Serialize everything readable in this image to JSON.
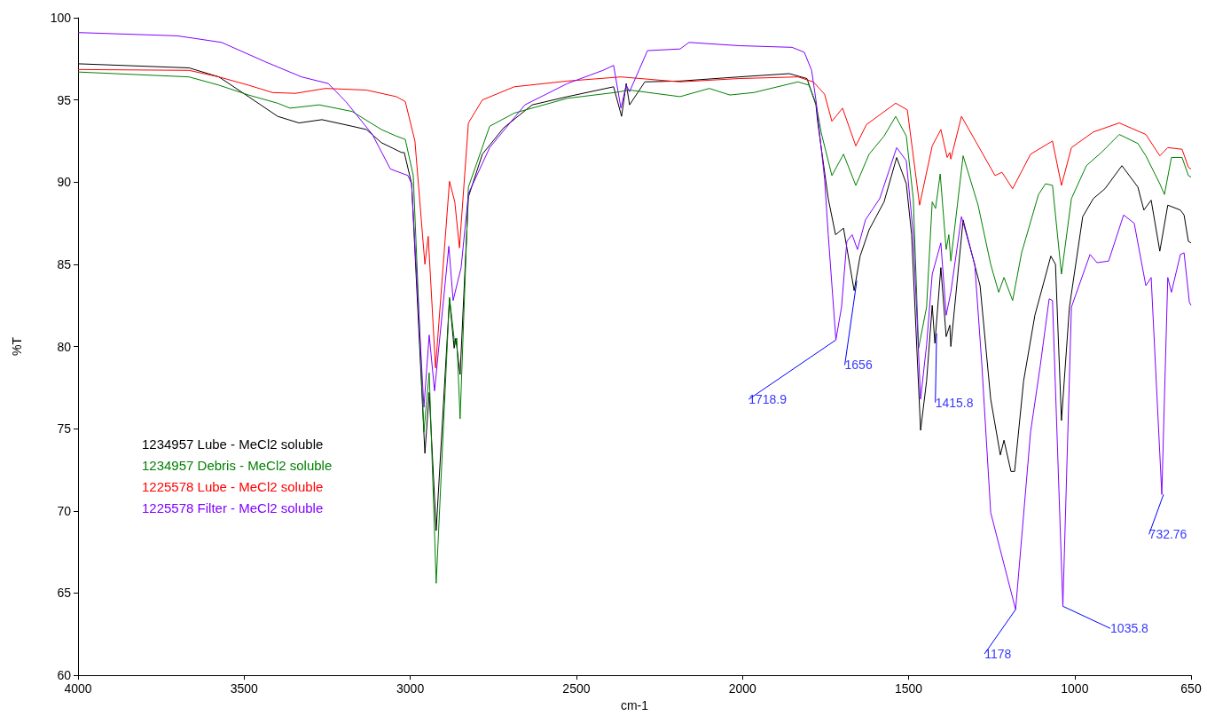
{
  "chart_data": {
    "type": "line",
    "xlabel": "cm-1",
    "ylabel": "%T",
    "xlim": [
      4000,
      650
    ],
    "ylim": [
      60,
      100
    ],
    "xticks": [
      4000,
      3500,
      3000,
      2500,
      2000,
      1500,
      1000,
      650
    ],
    "yticks": [
      60,
      65,
      70,
      75,
      80,
      85,
      90,
      95,
      100
    ],
    "grid": false,
    "legend": "left",
    "series": [
      {
        "name": "1234957 Lube - MeCl2 soluble",
        "color": "#000000",
        "x": [
          4000,
          3666,
          3576,
          3487,
          3399,
          3335,
          3266,
          3175,
          3132,
          3087,
          3026,
          3018,
          2996,
          2956,
          2943,
          2922,
          2882,
          2868,
          2863,
          2850,
          2825,
          2783,
          2719,
          2633,
          2527,
          2388,
          2364,
          2350,
          2340,
          2294,
          2188,
          2011,
          1859,
          1806,
          1779,
          1774,
          1742,
          1720,
          1696,
          1664,
          1646,
          1619,
          1574,
          1536,
          1507,
          1491,
          1464,
          1446,
          1429,
          1421,
          1403,
          1387,
          1376,
          1373,
          1336,
          1285,
          1253,
          1224,
          1213,
          1192,
          1181,
          1154,
          1120,
          1072,
          1058,
          1040,
          1016,
          976,
          944,
          909,
          858,
          810,
          792,
          770,
          744,
          720,
          682,
          671,
          658,
          650
        ],
        "values": [
          97.2,
          96.95,
          96.4,
          95.2,
          94.0,
          93.6,
          93.8,
          93.4,
          93.2,
          92.4,
          91.8,
          91.8,
          89.9,
          73.5,
          77.2,
          68.8,
          82.9,
          79.9,
          80.5,
          78.3,
          89.1,
          91.7,
          93.3,
          94.7,
          95.2,
          95.8,
          94.0,
          96.0,
          94.7,
          96.1,
          96.15,
          96.4,
          96.6,
          96.3,
          94.7,
          93.7,
          89.0,
          86.8,
          87.2,
          83.4,
          85.5,
          87.1,
          88.8,
          91.5,
          89.9,
          86.8,
          74.9,
          77.9,
          82.5,
          80.2,
          84.8,
          80.6,
          81.3,
          80.0,
          87.7,
          83.7,
          76.8,
          73.4,
          74.3,
          72.4,
          72.4,
          77.9,
          81.9,
          85.5,
          85.0,
          75.5,
          82.4,
          87.9,
          89.0,
          89.6,
          91.0,
          89.7,
          88.3,
          88.9,
          85.8,
          88.6,
          88.3,
          88.0,
          86.4,
          86.3
        ]
      },
      {
        "name": "1234957 Debris - MeCl2 soluble",
        "color": "#008000",
        "x": [
          4000,
          3666,
          3576,
          3487,
          3399,
          3362,
          3274,
          3175,
          3087,
          3042,
          3015,
          2991,
          2959,
          2943,
          2922,
          2882,
          2866,
          2860,
          2850,
          2825,
          2761,
          2687,
          2527,
          2385,
          2340,
          2188,
          2100,
          2038,
          1966,
          1833,
          1800,
          1779,
          1763,
          1731,
          1696,
          1659,
          1619,
          1574,
          1539,
          1507,
          1486,
          1470,
          1446,
          1429,
          1419,
          1405,
          1387,
          1379,
          1373,
          1336,
          1291,
          1253,
          1229,
          1213,
          1187,
          1160,
          1109,
          1088,
          1067,
          1040,
          1010,
          965,
          920,
          866,
          810,
          786,
          744,
          730,
          709,
          677,
          658,
          650
        ],
        "values": [
          96.7,
          96.4,
          95.9,
          95.3,
          94.8,
          94.5,
          94.7,
          94.3,
          93.2,
          92.8,
          92.6,
          90.4,
          74.8,
          78.4,
          65.6,
          83.0,
          80.1,
          80.5,
          75.6,
          89.7,
          93.4,
          94.2,
          95.1,
          95.45,
          95.6,
          95.2,
          95.7,
          95.3,
          95.45,
          96.1,
          95.9,
          94.8,
          93.0,
          90.4,
          91.7,
          89.8,
          91.7,
          92.8,
          94.0,
          92.8,
          89.0,
          79.9,
          82.4,
          88.8,
          88.4,
          90.5,
          85.9,
          86.8,
          85.2,
          91.6,
          88.6,
          85.0,
          83.3,
          84.2,
          82.8,
          85.7,
          89.25,
          89.9,
          89.8,
          84.4,
          89.0,
          91.0,
          91.8,
          92.9,
          92.35,
          91.6,
          89.9,
          89.25,
          91.5,
          91.5,
          90.4,
          90.3
        ]
      },
      {
        "name": "1225578 Lube - MeCl2 soluble",
        "color": "#ff0000",
        "x": [
          4000,
          3666,
          3576,
          3487,
          3415,
          3346,
          3255,
          3132,
          3042,
          3015,
          2986,
          2956,
          2946,
          2924,
          2882,
          2866,
          2852,
          2825,
          2783,
          2687,
          2527,
          2366,
          2188,
          2011,
          1833,
          1787,
          1753,
          1731,
          1699,
          1659,
          1627,
          1539,
          1504,
          1467,
          1429,
          1403,
          1384,
          1376,
          1373,
          1341,
          1296,
          1240,
          1219,
          1187,
          1133,
          1067,
          1040,
          1010,
          944,
          866,
          786,
          744,
          720,
          677,
          658,
          650
        ],
        "values": [
          96.85,
          96.8,
          96.4,
          95.9,
          95.45,
          95.4,
          95.7,
          95.6,
          95.2,
          94.9,
          92.5,
          85.0,
          86.7,
          78.7,
          90.05,
          88.8,
          86.0,
          93.6,
          95.0,
          95.8,
          96.15,
          96.4,
          96.1,
          96.3,
          96.4,
          96.1,
          95.35,
          93.7,
          94.5,
          92.2,
          93.5,
          94.8,
          94.4,
          88.6,
          92.2,
          93.2,
          91.5,
          91.8,
          91.4,
          94.0,
          92.4,
          90.4,
          90.6,
          89.6,
          91.7,
          92.5,
          89.8,
          92.1,
          93.05,
          93.6,
          92.9,
          91.6,
          92.1,
          92.0,
          90.9,
          90.8
        ]
      },
      {
        "name": "1225578 Filter - MeCl2 soluble",
        "color": "#8000ff",
        "x": [
          4000,
          3701,
          3568,
          3434,
          3327,
          3247,
          3194,
          3114,
          3060,
          3007,
          2996,
          2959,
          2943,
          2927,
          2884,
          2871,
          2847,
          2825,
          2761,
          2655,
          2527,
          2420,
          2388,
          2366,
          2350,
          2340,
          2286,
          2188,
          2161,
          2011,
          1851,
          1814,
          1792,
          1779,
          1753,
          1742,
          1718.9,
          1702,
          1686,
          1670,
          1654,
          1630,
          1587,
          1536,
          1507,
          1486,
          1464,
          1446,
          1429,
          1403,
          1387,
          1373,
          1341,
          1301,
          1280,
          1253,
          1178,
          1133,
          1104,
          1077,
          1067,
          1035.8,
          1010,
          954,
          933,
          898,
          853,
          821,
          786,
          770,
          738,
          720,
          709,
          682,
          671,
          655,
          650
        ],
        "values": [
          99.1,
          98.9,
          98.5,
          97.3,
          96.4,
          96.0,
          94.9,
          92.9,
          90.8,
          90.4,
          89.9,
          76.3,
          80.7,
          77.3,
          86.1,
          82.8,
          84.8,
          89.3,
          92.1,
          94.7,
          96.0,
          96.8,
          97.1,
          94.5,
          95.9,
          95.5,
          98.0,
          98.1,
          98.5,
          98.3,
          98.2,
          97.9,
          96.8,
          95.0,
          90.2,
          86.8,
          80.4,
          82.4,
          86.4,
          86.8,
          85.9,
          87.7,
          89.0,
          92.1,
          91.3,
          86.8,
          76.8,
          80.1,
          84.4,
          86.3,
          81.9,
          83.3,
          87.9,
          85.0,
          79.0,
          69.9,
          64.0,
          74.8,
          78.8,
          82.9,
          82.8,
          64.2,
          82.4,
          85.6,
          85.1,
          85.2,
          88.0,
          87.5,
          83.7,
          84.2,
          71.0,
          84.2,
          83.3,
          85.6,
          85.7,
          82.7,
          82.5
        ]
      }
    ],
    "annotations": [
      {
        "text": "1718.9",
        "x": 1718.9,
        "y": 80.4
      },
      {
        "text": "1656",
        "x": 1656,
        "y": 84.0
      },
      {
        "text": "1415.8",
        "x": 1415.8,
        "y": 80.8
      },
      {
        "text": "1178",
        "x": 1178,
        "y": 64.0
      },
      {
        "text": "1035.8",
        "x": 1035.8,
        "y": 64.2
      },
      {
        "text": "732.76",
        "x": 732.76,
        "y": 71.0
      }
    ]
  }
}
